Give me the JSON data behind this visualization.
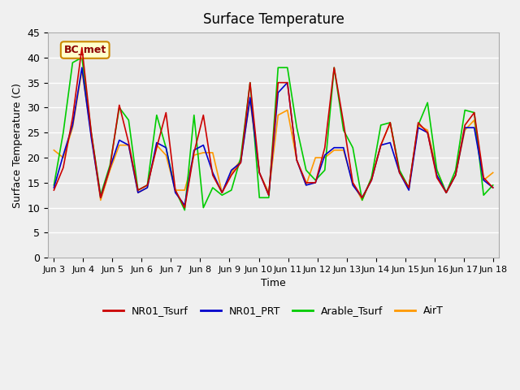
{
  "title": "Surface Temperature",
  "xlabel": "Time",
  "ylabel": "Surface Temperature (C)",
  "ylim": [
    0,
    45
  ],
  "yticks": [
    0,
    5,
    10,
    15,
    20,
    25,
    30,
    35,
    40,
    45
  ],
  "annotation": "BC_met",
  "bg_color": "#e8e8e8",
  "line_colors": {
    "NR01_Tsurf": "#cc0000",
    "NR01_PRT": "#0000cc",
    "Arable_Tsurf": "#00cc00",
    "AirT": "#ff9900"
  },
  "x_tick_labels": [
    "Jun 3",
    "Jun 4",
    "Jun 5",
    "Jun 6",
    "Jun 7",
    "Jun 8",
    "Jun 9",
    "Jun 10",
    "Jun 11",
    "Jun 12",
    "Jun 13",
    "Jun 14",
    "Jun 15",
    "Jun 16",
    "Jun 17",
    "Jun 18"
  ],
  "legend_items": [
    "NR01_Tsurf",
    "NR01_PRT",
    "Arable_Tsurf",
    "AirT"
  ],
  "NR01_Tsurf": [
    13.5,
    18.0,
    28.0,
    42.0,
    25.0,
    12.0,
    18.0,
    30.5,
    23.0,
    13.5,
    14.5,
    22.0,
    29.0,
    13.5,
    10.0,
    21.0,
    28.5,
    16.5,
    13.0,
    16.5,
    19.0,
    35.0,
    17.0,
    12.5,
    35.0,
    35.0,
    19.5,
    15.0,
    15.0,
    22.0,
    38.0,
    27.0,
    15.0,
    12.0,
    15.5,
    22.5,
    27.0,
    17.0,
    14.0,
    27.0,
    25.0,
    16.0,
    13.0,
    16.5,
    26.5,
    29.0,
    16.0,
    14.0
  ],
  "NR01_PRT": [
    14.0,
    20.5,
    26.5,
    38.0,
    24.0,
    12.0,
    18.0,
    23.5,
    22.5,
    13.0,
    14.0,
    23.0,
    22.0,
    13.0,
    10.5,
    21.5,
    22.5,
    17.0,
    13.0,
    17.5,
    19.0,
    32.0,
    17.0,
    12.5,
    33.0,
    35.0,
    19.5,
    14.5,
    15.0,
    20.5,
    22.0,
    22.0,
    14.5,
    12.0,
    15.5,
    22.5,
    23.0,
    17.0,
    13.5,
    26.0,
    25.0,
    16.5,
    13.0,
    16.5,
    26.0,
    26.0,
    15.5,
    14.0
  ],
  "Arable_Tsurf": [
    14.5,
    25.0,
    39.0,
    40.0,
    25.0,
    12.5,
    18.5,
    30.0,
    27.5,
    13.5,
    14.5,
    28.5,
    22.0,
    13.5,
    9.5,
    28.5,
    10.0,
    14.0,
    12.5,
    13.5,
    20.0,
    35.0,
    12.0,
    12.0,
    38.0,
    38.0,
    26.0,
    17.5,
    15.5,
    17.5,
    38.0,
    25.5,
    22.0,
    11.5,
    16.0,
    26.5,
    27.0,
    17.5,
    14.0,
    26.5,
    31.0,
    17.5,
    13.0,
    17.5,
    29.5,
    29.0,
    12.5,
    14.5
  ],
  "AirT": [
    21.5,
    20.0,
    26.0,
    37.5,
    24.5,
    11.5,
    17.5,
    22.5,
    22.5,
    13.0,
    14.0,
    22.5,
    20.5,
    13.5,
    13.5,
    20.5,
    21.0,
    21.0,
    13.0,
    17.0,
    19.5,
    31.5,
    17.0,
    13.0,
    28.5,
    29.5,
    19.5,
    14.5,
    20.0,
    20.0,
    21.5,
    21.5,
    15.0,
    11.5,
    16.0,
    22.5,
    27.0,
    17.0,
    14.0,
    26.5,
    25.5,
    17.5,
    13.0,
    16.5,
    25.5,
    27.5,
    15.5,
    17.0
  ]
}
